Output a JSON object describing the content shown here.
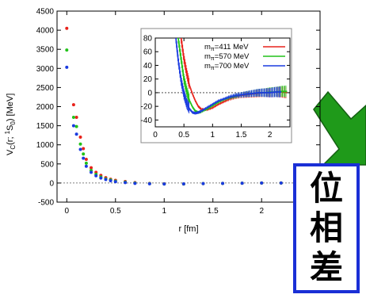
{
  "chart_data": [
    {
      "type": "scatter",
      "title": "",
      "xlabel": "r [fm]",
      "ylabel": "V_C(r; ¹S₀) [MeV]",
      "ylabel_parts": {
        "main": "V",
        "sub1": "C",
        "paren_open": "(r; ",
        "sup": "1",
        "s": "S",
        "sub2": "0",
        "paren_close": ") [MeV]"
      },
      "xlim": [
        -0.1,
        2.6
      ],
      "ylim": [
        -500,
        4500
      ],
      "x_ticks": [
        "0",
        "0.5",
        "1",
        "1.5",
        "2"
      ],
      "y_ticks": [
        "-500",
        "0",
        "500",
        "1000",
        "1500",
        "2000",
        "2500",
        "3000",
        "3500",
        "4000",
        "4500"
      ],
      "x_tick_values": [
        0,
        0.5,
        1,
        1.5,
        2
      ],
      "y_tick_values": [
        -500,
        0,
        500,
        1000,
        1500,
        2000,
        2500,
        3000,
        3500,
        4000,
        4500
      ],
      "reference_line": 0,
      "series": [
        {
          "name": "mπ=411 MeV",
          "color": "#e8221b",
          "points": [
            [
              0.0,
              4050
            ],
            [
              0.07,
              2050
            ],
            [
              0.1,
              1720
            ],
            [
              0.14,
              1200
            ],
            [
              0.17,
              900
            ],
            [
              0.2,
              620
            ],
            [
              0.25,
              400
            ],
            [
              0.3,
              280
            ],
            [
              0.35,
              200
            ],
            [
              0.4,
              140
            ],
            [
              0.45,
              100
            ],
            [
              0.5,
              70
            ],
            [
              0.6,
              40
            ],
            [
              0.7,
              10
            ],
            [
              0.85,
              -10
            ],
            [
              1.0,
              -20
            ],
            [
              1.2,
              -25
            ],
            [
              1.4,
              -15
            ],
            [
              1.6,
              -10
            ],
            [
              1.8,
              -5
            ],
            [
              2.0,
              0
            ],
            [
              2.2,
              0
            ]
          ]
        },
        {
          "name": "mπ=570 MeV",
          "color": "#22c21a",
          "points": [
            [
              0.0,
              3480
            ],
            [
              0.07,
              1720
            ],
            [
              0.1,
              1480
            ],
            [
              0.14,
              1020
            ],
            [
              0.17,
              760
            ],
            [
              0.2,
              520
            ],
            [
              0.25,
              330
            ],
            [
              0.3,
              230
            ],
            [
              0.35,
              160
            ],
            [
              0.4,
              110
            ],
            [
              0.45,
              80
            ],
            [
              0.5,
              50
            ],
            [
              0.6,
              25
            ],
            [
              0.7,
              0
            ],
            [
              0.85,
              -15
            ],
            [
              1.0,
              -25
            ],
            [
              1.2,
              -25
            ],
            [
              1.4,
              -15
            ],
            [
              1.6,
              -10
            ],
            [
              1.8,
              -5
            ],
            [
              2.0,
              0
            ],
            [
              2.2,
              0
            ]
          ]
        },
        {
          "name": "mπ=700 MeV",
          "color": "#1a3be0",
          "points": [
            [
              0.0,
              3030
            ],
            [
              0.07,
              1500
            ],
            [
              0.1,
              1280
            ],
            [
              0.14,
              880
            ],
            [
              0.17,
              650
            ],
            [
              0.2,
              440
            ],
            [
              0.25,
              280
            ],
            [
              0.3,
              190
            ],
            [
              0.35,
              130
            ],
            [
              0.4,
              90
            ],
            [
              0.45,
              60
            ],
            [
              0.5,
              35
            ],
            [
              0.6,
              10
            ],
            [
              0.7,
              -10
            ],
            [
              0.85,
              -20
            ],
            [
              1.0,
              -25
            ],
            [
              1.2,
              -22
            ],
            [
              1.4,
              -15
            ],
            [
              1.6,
              -10
            ],
            [
              1.8,
              -5
            ],
            [
              2.0,
              0
            ],
            [
              2.2,
              0
            ]
          ]
        }
      ]
    },
    {
      "type": "scatter",
      "title": "",
      "xlabel": "",
      "ylabel": "",
      "xlim": [
        0,
        2.35
      ],
      "ylim": [
        -50,
        80
      ],
      "x_ticks": [
        "0",
        "0.5",
        "1",
        "1.5",
        "2"
      ],
      "y_ticks": [
        "-40",
        "-20",
        "0",
        "20",
        "40",
        "60",
        "80"
      ],
      "x_tick_values": [
        0,
        0.5,
        1,
        1.5,
        2
      ],
      "y_tick_values": [
        -40,
        -20,
        0,
        20,
        40,
        60,
        80
      ],
      "reference_line": 0,
      "legend_position": "top-right",
      "series": [
        {
          "name": "mπ=411 MeV",
          "color": "#e8221b",
          "curve": [
            [
              0.45,
              80
            ],
            [
              0.5,
              50
            ],
            [
              0.55,
              28
            ],
            [
              0.6,
              10
            ],
            [
              0.65,
              -2
            ],
            [
              0.7,
              -12
            ],
            [
              0.75,
              -20
            ],
            [
              0.8,
              -24
            ],
            [
              0.9,
              -25
            ],
            [
              1.0,
              -22
            ],
            [
              1.1,
              -17
            ],
            [
              1.2,
              -13
            ],
            [
              1.3,
              -9
            ],
            [
              1.4,
              -6
            ],
            [
              1.5,
              -4
            ],
            [
              1.6,
              -3
            ],
            [
              1.7,
              -2
            ],
            [
              1.8,
              -1
            ],
            [
              1.9,
              0
            ],
            [
              2.0,
              0
            ],
            [
              2.1,
              1
            ],
            [
              2.2,
              1
            ],
            [
              2.3,
              0
            ]
          ]
        },
        {
          "name": "mπ=570 MeV",
          "color": "#22c21a",
          "curve": [
            [
              0.4,
              80
            ],
            [
              0.45,
              50
            ],
            [
              0.5,
              20
            ],
            [
              0.55,
              2
            ],
            [
              0.6,
              -12
            ],
            [
              0.65,
              -21
            ],
            [
              0.7,
              -27
            ],
            [
              0.75,
              -29
            ],
            [
              0.8,
              -28
            ],
            [
              0.9,
              -24
            ],
            [
              1.0,
              -19
            ],
            [
              1.1,
              -14
            ],
            [
              1.2,
              -10
            ],
            [
              1.3,
              -7
            ],
            [
              1.4,
              -5
            ],
            [
              1.5,
              -3
            ],
            [
              1.6,
              -2
            ],
            [
              1.7,
              -1
            ],
            [
              1.8,
              0
            ],
            [
              1.9,
              0
            ],
            [
              2.0,
              1
            ],
            [
              2.1,
              1
            ],
            [
              2.2,
              2
            ],
            [
              2.3,
              2
            ]
          ]
        },
        {
          "name": "mπ=700 MeV",
          "color": "#1a3be0",
          "curve": [
            [
              0.36,
              80
            ],
            [
              0.4,
              48
            ],
            [
              0.45,
              18
            ],
            [
              0.5,
              -2
            ],
            [
              0.55,
              -16
            ],
            [
              0.6,
              -24
            ],
            [
              0.65,
              -29
            ],
            [
              0.7,
              -30
            ],
            [
              0.75,
              -29
            ],
            [
              0.8,
              -27
            ],
            [
              0.9,
              -22
            ],
            [
              1.0,
              -17
            ],
            [
              1.1,
              -12
            ],
            [
              1.2,
              -9
            ],
            [
              1.3,
              -6
            ],
            [
              1.4,
              -4
            ],
            [
              1.5,
              -3
            ],
            [
              1.6,
              -2
            ],
            [
              1.7,
              -1
            ],
            [
              1.8,
              0
            ],
            [
              1.9,
              0
            ],
            [
              2.0,
              0
            ],
            [
              2.1,
              1
            ],
            [
              2.2,
              1
            ]
          ]
        }
      ]
    }
  ],
  "legend": [
    {
      "label": "m",
      "sub": "π",
      "rest": "=411 MeV",
      "color": "#e8221b"
    },
    {
      "label": "m",
      "sub": "π",
      "rest": "=570 MeV",
      "color": "#22c21a"
    },
    {
      "label": "m",
      "sub": "π",
      "rest": "=700 MeV",
      "color": "#1a3be0"
    }
  ],
  "annotation": {
    "text_chars": [
      "位",
      "相",
      "差"
    ],
    "box_color": "#1a2fd6",
    "arrow_color": "#1f9a1a"
  }
}
